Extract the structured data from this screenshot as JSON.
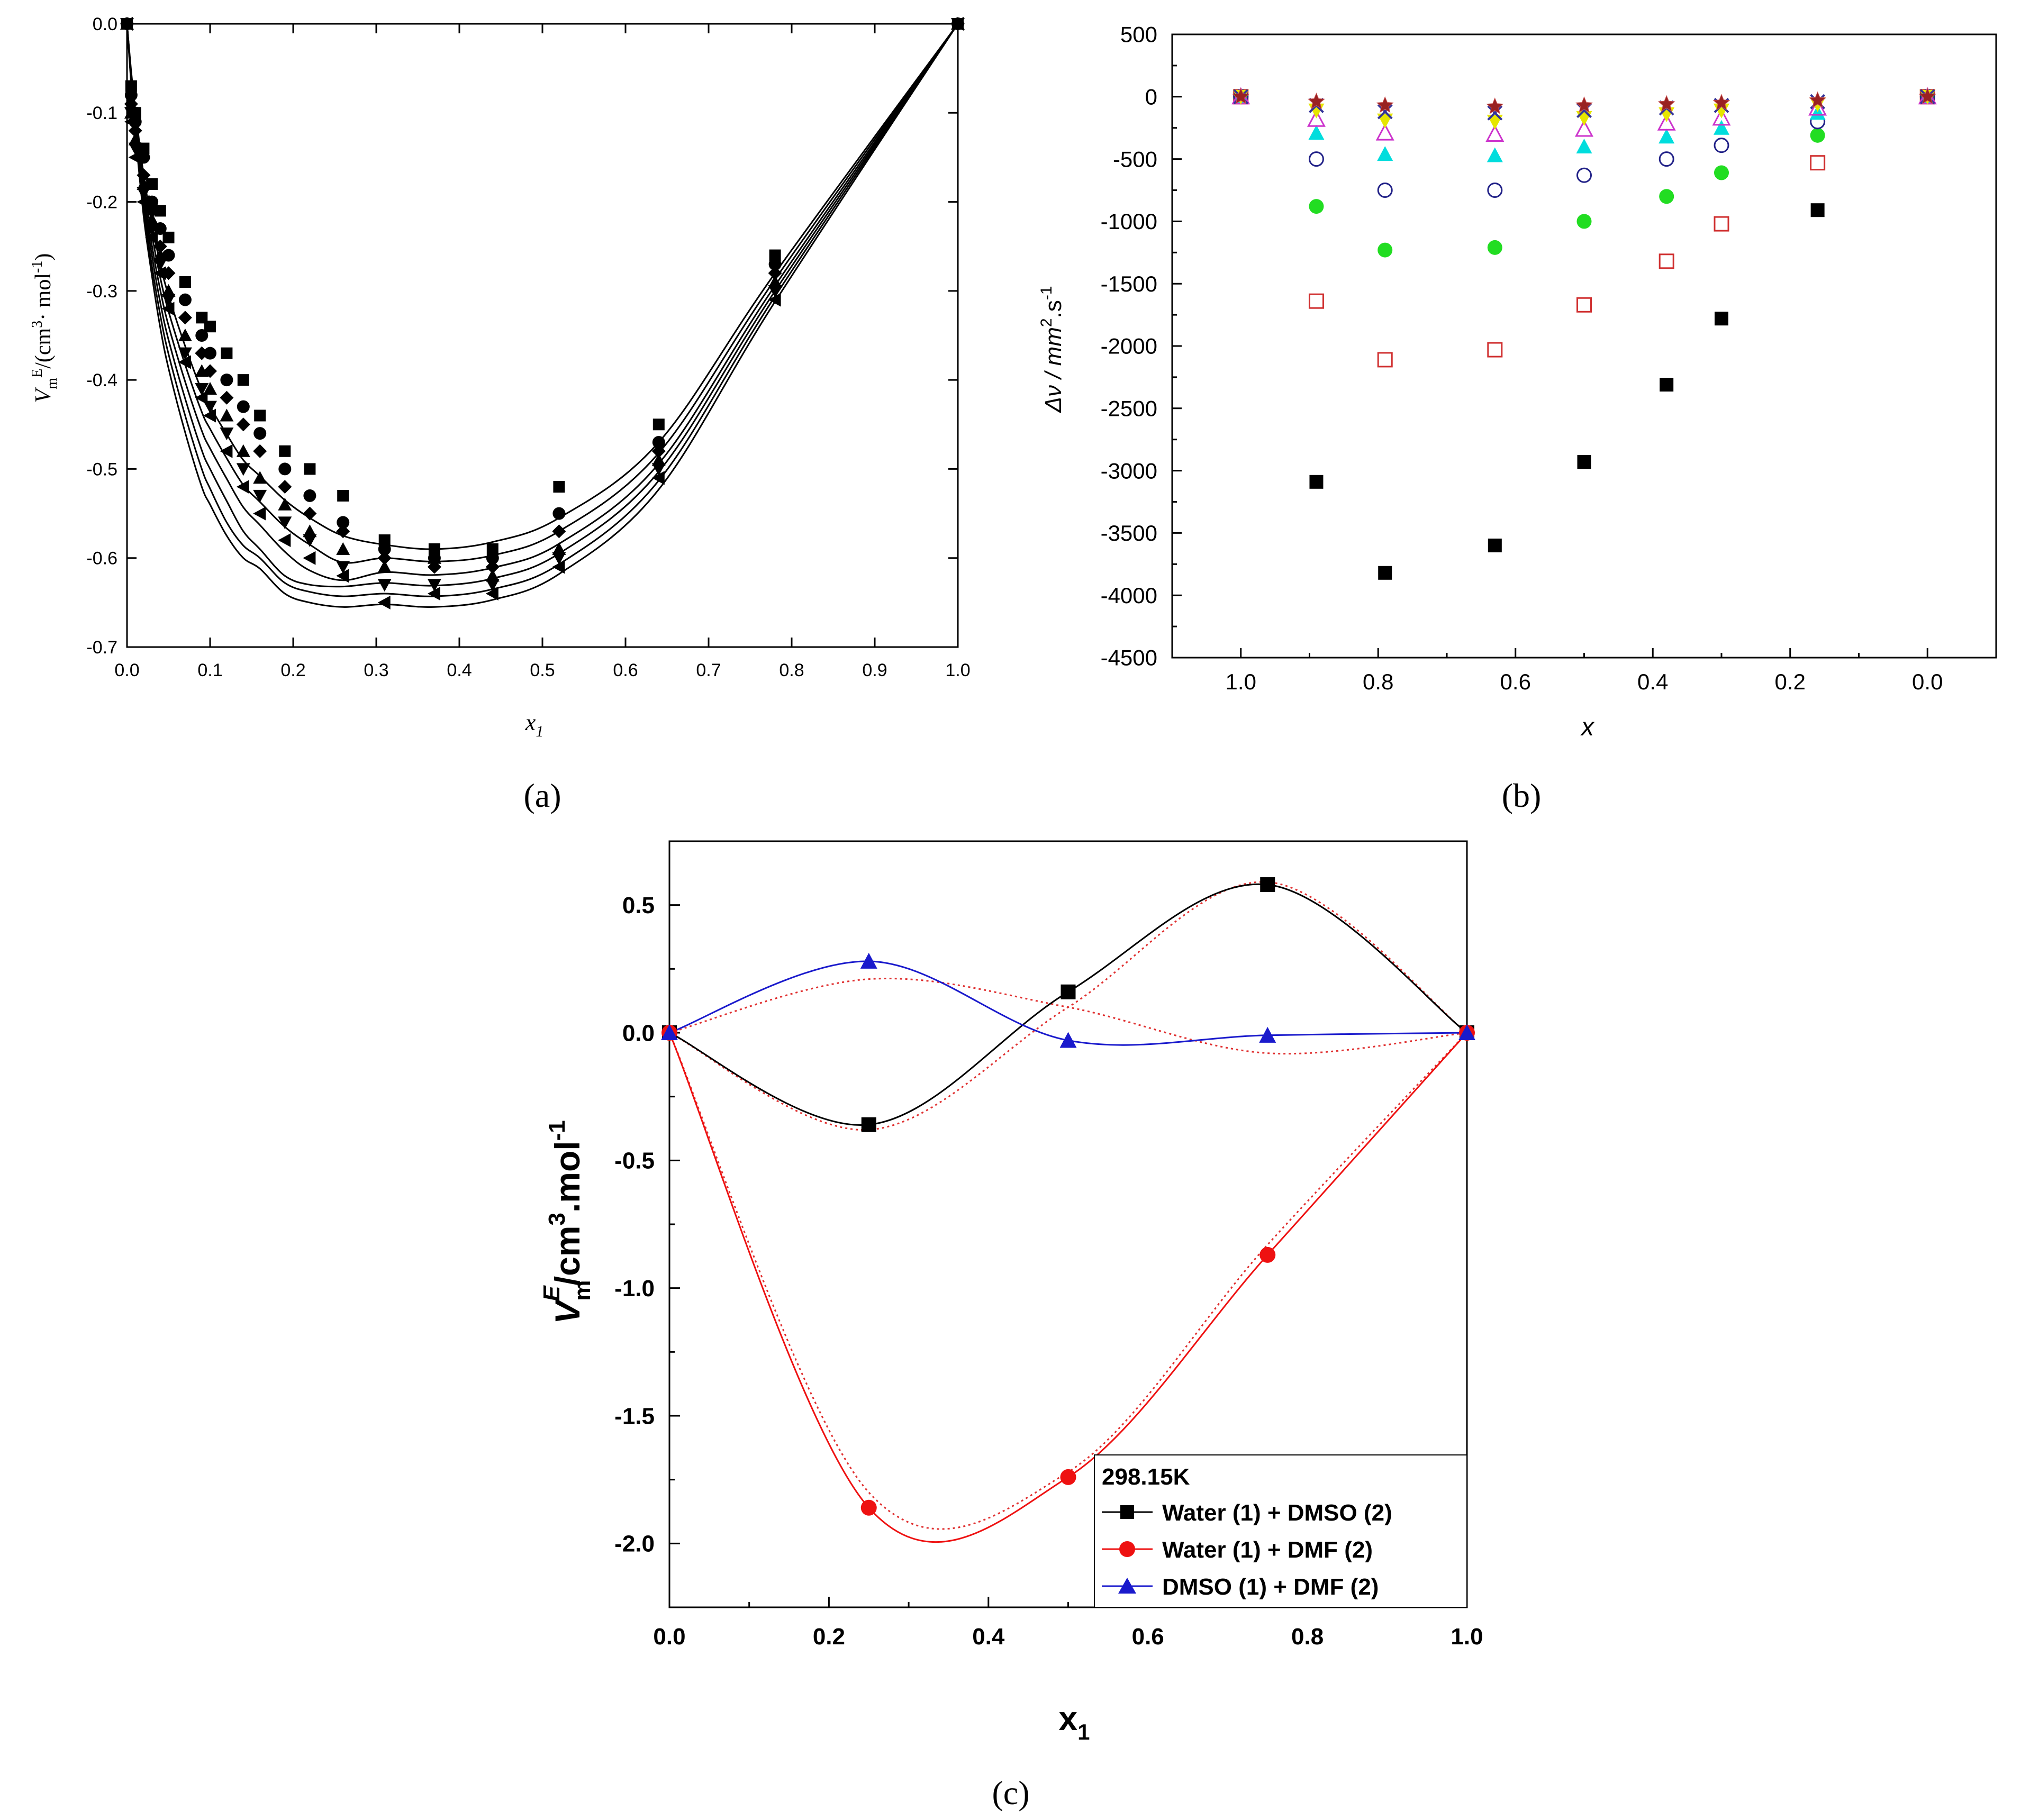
{
  "chart_data": [
    {
      "id": "a",
      "panel_label": "(a)",
      "type": "scatter",
      "xlabel": "x",
      "xlabel_sub": "1",
      "ylabel": "V",
      "ylabel_sub": "m",
      "ylabel_sup": "E",
      "ylabel_unit": "/(cm",
      "ylabel_unit_sup": "3",
      "ylabel_unit_tail": "· mol",
      "ylabel_unit_sup2": "-1",
      "ylabel_unit_close": ")",
      "xlim": [
        0.0,
        1.0
      ],
      "ylim": [
        -0.7,
        0.0
      ],
      "xticks": [
        0.0,
        0.1,
        0.2,
        0.3,
        0.4,
        0.5,
        0.6,
        0.7,
        0.8,
        0.9,
        1.0
      ],
      "xtick_labels": [
        "0.0",
        "0.1",
        "0.2",
        "0.3",
        "0.4",
        "0.5",
        "0.6",
        "0.7",
        "0.8",
        "0.9",
        "1.0"
      ],
      "yticks": [
        0.0,
        -0.1,
        -0.2,
        -0.3,
        -0.4,
        -0.5,
        -0.6,
        -0.7
      ],
      "ytick_labels": [
        "0.0",
        "-0.1",
        "-0.2",
        "-0.3",
        "-0.4",
        "-0.5",
        "-0.6",
        "-0.7"
      ],
      "x": [
        0.0,
        0.005,
        0.01,
        0.02,
        0.03,
        0.04,
        0.05,
        0.07,
        0.09,
        0.1,
        0.12,
        0.14,
        0.16,
        0.19,
        0.22,
        0.26,
        0.31,
        0.37,
        0.44,
        0.52,
        0.64,
        0.78,
        1.0
      ],
      "series": [
        {
          "name": "series-1",
          "marker": "square",
          "values": [
            0.0,
            -0.07,
            -0.1,
            -0.14,
            -0.18,
            -0.21,
            -0.24,
            -0.29,
            -0.33,
            -0.34,
            -0.37,
            -0.4,
            -0.44,
            -0.48,
            -0.5,
            -0.53,
            -0.58,
            -0.59,
            -0.59,
            -0.52,
            -0.45,
            -0.26,
            0.0
          ]
        },
        {
          "name": "series-2",
          "marker": "circle",
          "values": [
            0.0,
            -0.08,
            -0.11,
            -0.15,
            -0.2,
            -0.23,
            -0.26,
            -0.31,
            -0.35,
            -0.37,
            -0.4,
            -0.43,
            -0.46,
            -0.5,
            -0.53,
            -0.56,
            -0.59,
            -0.6,
            -0.6,
            -0.55,
            -0.47,
            -0.27,
            0.0
          ]
        },
        {
          "name": "series-3",
          "marker": "diamond",
          "values": [
            0.0,
            -0.09,
            -0.12,
            -0.17,
            -0.21,
            -0.25,
            -0.28,
            -0.33,
            -0.37,
            -0.39,
            -0.42,
            -0.45,
            -0.48,
            -0.52,
            -0.55,
            -0.57,
            -0.6,
            -0.61,
            -0.61,
            -0.57,
            -0.48,
            -0.28,
            0.0
          ]
        },
        {
          "name": "series-4",
          "marker": "triangle-up",
          "values": [
            0.0,
            -0.1,
            -0.13,
            -0.18,
            -0.22,
            -0.26,
            -0.3,
            -0.35,
            -0.39,
            -0.41,
            -0.44,
            -0.48,
            -0.51,
            -0.54,
            -0.57,
            -0.59,
            -0.61,
            -0.6,
            -0.62,
            -0.59,
            -0.49,
            -0.29,
            0.0
          ]
        },
        {
          "name": "series-5",
          "marker": "triangle-down",
          "values": [
            0.0,
            -0.1,
            -0.14,
            -0.19,
            -0.23,
            -0.27,
            -0.31,
            -0.37,
            -0.41,
            -0.43,
            -0.46,
            -0.5,
            -0.53,
            -0.56,
            -0.58,
            -0.61,
            -0.63,
            -0.63,
            -0.63,
            -0.6,
            -0.5,
            -0.3,
            0.0
          ]
        },
        {
          "name": "series-6",
          "marker": "triangle-left",
          "values": [
            0.0,
            -0.11,
            -0.15,
            -0.2,
            -0.24,
            -0.28,
            -0.32,
            -0.38,
            -0.42,
            -0.44,
            -0.48,
            -0.52,
            -0.55,
            -0.58,
            -0.6,
            -0.62,
            -0.65,
            -0.64,
            -0.64,
            -0.61,
            -0.51,
            -0.31,
            0.0
          ]
        }
      ],
      "curves": [
        {
          "name": "fit-1",
          "values": [
            0.0,
            -0.053,
            -0.096,
            -0.17,
            -0.224,
            -0.27,
            -0.305,
            -0.362,
            -0.412,
            -0.43,
            -0.461,
            -0.49,
            -0.508,
            -0.535,
            -0.555,
            -0.575,
            -0.585,
            -0.59,
            -0.582,
            -0.555,
            -0.47,
            -0.28,
            0.0
          ]
        },
        {
          "name": "fit-2",
          "values": [
            0.0,
            -0.056,
            -0.102,
            -0.18,
            -0.237,
            -0.285,
            -0.323,
            -0.383,
            -0.436,
            -0.455,
            -0.488,
            -0.518,
            -0.537,
            -0.565,
            -0.585,
            -0.605,
            -0.6,
            -0.604,
            -0.597,
            -0.57,
            -0.482,
            -0.287,
            0.0
          ]
        },
        {
          "name": "fit-3",
          "values": [
            0.0,
            -0.058,
            -0.107,
            -0.189,
            -0.249,
            -0.299,
            -0.339,
            -0.402,
            -0.457,
            -0.477,
            -0.511,
            -0.543,
            -0.563,
            -0.593,
            -0.614,
            -0.625,
            -0.616,
            -0.619,
            -0.611,
            -0.584,
            -0.494,
            -0.294,
            0.0
          ]
        },
        {
          "name": "fit-4",
          "values": [
            0.0,
            -0.061,
            -0.112,
            -0.198,
            -0.26,
            -0.313,
            -0.355,
            -0.421,
            -0.479,
            -0.5,
            -0.536,
            -0.57,
            -0.59,
            -0.62,
            -0.63,
            -0.632,
            -0.628,
            -0.631,
            -0.623,
            -0.595,
            -0.503,
            -0.3,
            0.0
          ]
        },
        {
          "name": "fit-5",
          "values": [
            0.0,
            -0.064,
            -0.117,
            -0.207,
            -0.272,
            -0.327,
            -0.371,
            -0.44,
            -0.5,
            -0.522,
            -0.56,
            -0.586,
            -0.6,
            -0.628,
            -0.638,
            -0.643,
            -0.64,
            -0.643,
            -0.635,
            -0.607,
            -0.513,
            -0.306,
            0.0
          ]
        },
        {
          "name": "fit-6",
          "values": [
            0.0,
            -0.067,
            -0.122,
            -0.216,
            -0.283,
            -0.341,
            -0.387,
            -0.459,
            -0.52,
            -0.54,
            -0.575,
            -0.6,
            -0.612,
            -0.64,
            -0.65,
            -0.655,
            -0.652,
            -0.655,
            -0.647,
            -0.618,
            -0.523,
            -0.312,
            0.0
          ]
        }
      ],
      "grid": false
    },
    {
      "id": "b",
      "panel_label": "(b)",
      "type": "scatter",
      "xlabel": "x",
      "ylabel": "Δν / mm",
      "ylabel_sup": "2",
      "ylabel_tail": ".s",
      "ylabel_sup2": "-1",
      "xlim": [
        1.1,
        -0.1
      ],
      "ylim": [
        -4500,
        500
      ],
      "xticks": [
        1.0,
        0.8,
        0.6,
        0.4,
        0.2,
        0.0
      ],
      "xtick_labels": [
        "1.0",
        "0.8",
        "0.6",
        "0.4",
        "0.2",
        "0.0"
      ],
      "yticks": [
        500,
        0,
        -500,
        -1000,
        -1500,
        -2000,
        -2500,
        -3000,
        -3500,
        -4000,
        -4500
      ],
      "ytick_labels": [
        "500",
        "0",
        "-500",
        "-1000",
        "-1500",
        "-2000",
        "-2500",
        "-3000",
        "-3500",
        "-4000",
        "-4500"
      ],
      "x": [
        1.0,
        0.89,
        0.79,
        0.63,
        0.5,
        0.38,
        0.3,
        0.16,
        0.0
      ],
      "series": [
        {
          "name": "series-1",
          "marker": "square",
          "color": "#000000",
          "values": [
            0,
            -3090,
            -3820,
            -3600,
            -2930,
            -2310,
            -1780,
            -910,
            0
          ]
        },
        {
          "name": "series-2",
          "marker": "square-open",
          "color": "#d03030",
          "values": [
            0,
            -1640,
            -2110,
            -2030,
            -1670,
            -1320,
            -1020,
            -530,
            0
          ]
        },
        {
          "name": "series-3",
          "marker": "circle",
          "color": "#22dd22",
          "values": [
            0,
            -880,
            -1230,
            -1210,
            -1000,
            -800,
            -610,
            -310,
            0
          ]
        },
        {
          "name": "series-4",
          "marker": "circle-open",
          "color": "#222288",
          "values": [
            0,
            -500,
            -750,
            -750,
            -630,
            -500,
            -390,
            -200,
            0
          ]
        },
        {
          "name": "series-5",
          "marker": "triangle-up",
          "color": "#00dddd",
          "values": [
            0,
            -290,
            -460,
            -470,
            -400,
            -320,
            -250,
            -130,
            0
          ]
        },
        {
          "name": "series-6",
          "marker": "triangle-open",
          "color": "#cc33cc",
          "values": [
            0,
            -180,
            -290,
            -300,
            -260,
            -210,
            -170,
            -90,
            0
          ]
        },
        {
          "name": "series-7",
          "marker": "triangle-down",
          "color": "#e6e600",
          "values": [
            0,
            -110,
            -190,
            -200,
            -170,
            -140,
            -110,
            -60,
            0
          ]
        },
        {
          "name": "series-8",
          "marker": "x",
          "color": "#333399",
          "values": [
            0,
            -70,
            -120,
            -130,
            -110,
            -90,
            -70,
            -40,
            0
          ]
        },
        {
          "name": "series-9",
          "marker": "star",
          "color": "#992222",
          "values": [
            0,
            -40,
            -70,
            -80,
            -70,
            -60,
            -50,
            -30,
            0
          ]
        }
      ],
      "grid": false
    },
    {
      "id": "c",
      "panel_label": "(c)",
      "type": "line",
      "xlabel": "x",
      "xlabel_sub": "1",
      "ylabel": "V",
      "ylabel_sub": "m",
      "ylabel_sup": "E",
      "ylabel_unit": "/cm",
      "ylabel_unit_sup": "3",
      "ylabel_unit_tail": ".mol",
      "ylabel_unit_sup2": "-1",
      "xlim": [
        0.0,
        1.0
      ],
      "ylim": [
        -2.25,
        0.75
      ],
      "xticks": [
        0.0,
        0.2,
        0.4,
        0.6,
        0.8,
        1.0
      ],
      "xtick_labels": [
        "0.0",
        "0.2",
        "0.4",
        "0.6",
        "0.8",
        "1.0"
      ],
      "yticks": [
        0.5,
        0.0,
        -0.5,
        -1.0,
        -1.5,
        -2.0
      ],
      "ytick_labels": [
        "0.5",
        "0.0",
        "-0.5",
        "-1.0",
        "-1.5",
        "-2.0"
      ],
      "x": [
        0.0,
        0.25,
        0.5,
        0.75,
        1.0
      ],
      "series": [
        {
          "name": "Water (1) + DMSO (2)",
          "marker": "square",
          "color": "#000000",
          "values": [
            0.0,
            -0.36,
            0.16,
            0.58,
            0.0
          ]
        },
        {
          "name": "Water (1) + DMF (2)",
          "marker": "circle",
          "color": "#ee1111",
          "values": [
            0.0,
            -1.86,
            -1.74,
            -0.87,
            0.0
          ]
        },
        {
          "name": "DMSO (1) + DMF (2)",
          "marker": "triangle-up",
          "color": "#1a1acc",
          "values": [
            0.0,
            0.28,
            -0.03,
            -0.01,
            0.0
          ]
        }
      ],
      "fit_curves": [
        {
          "name": "Water (1) + DMSO (2) fit",
          "values": [
            0.0,
            -0.38,
            0.1,
            0.59,
            0.0
          ]
        },
        {
          "name": "Water (1) + DMF (2) fit",
          "values": [
            0.0,
            -1.8,
            -1.72,
            -0.83,
            0.0
          ]
        },
        {
          "name": "DMSO (1) + DMF (2) fit",
          "values": [
            0.0,
            0.21,
            0.1,
            -0.08,
            0.0
          ]
        }
      ],
      "legend_title": "298.15K",
      "legend_position": "bottom-right",
      "grid": false
    }
  ]
}
